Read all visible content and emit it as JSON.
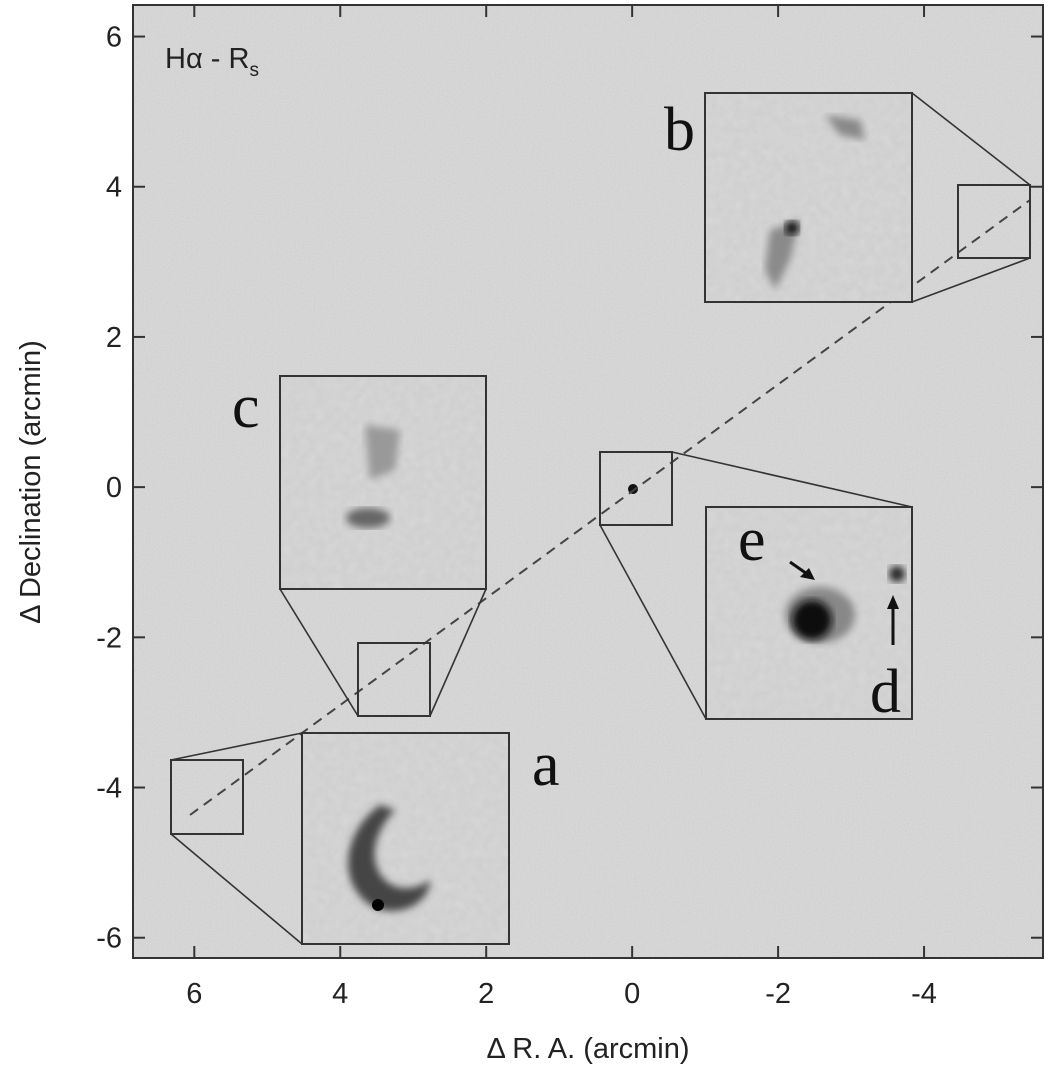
{
  "chart_data": {
    "type": "image",
    "title": {
      "main": "Hα - R",
      "sub": "s"
    },
    "xlabel": "Δ R. A. (arcmin)",
    "ylabel": "Δ Declination (arcmin)",
    "xlim": [
      6.84,
      -5.63
    ],
    "ylim": [
      -6.27,
      6.42
    ],
    "xticks": [
      6,
      4,
      2,
      0,
      -2,
      -4
    ],
    "yticks": [
      -6,
      -4,
      -2,
      0,
      2,
      4,
      6
    ],
    "inset_labels": [
      "a",
      "b",
      "c",
      "d",
      "e"
    ]
  }
}
